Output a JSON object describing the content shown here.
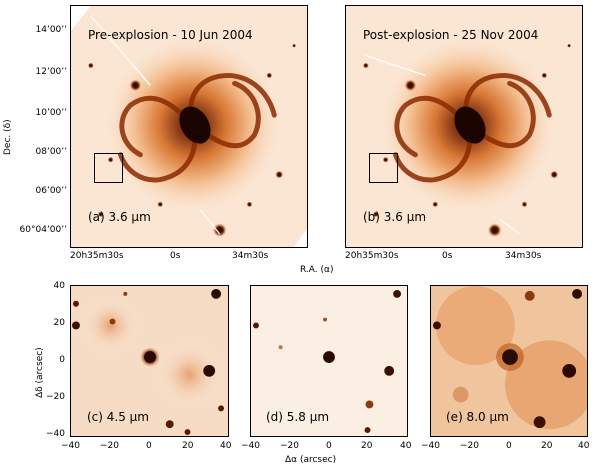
{
  "top_panels": [
    {
      "title": "Pre-explosion - 10 Jun 2004",
      "label": "(a) 3.6 μm"
    },
    {
      "title": "Post-explosion - 25 Nov 2004",
      "label": "(b) 3.6 μm"
    }
  ],
  "top_axes": {
    "y_title": "Dec. (δ)",
    "x_title": "R.A. (α)",
    "y_ticks": [
      "14’00’’",
      "12’00’’",
      "10’00’’",
      "08’00’’",
      "06’00’’",
      "60°04’00’’"
    ],
    "x_ticks": [
      "20h35m30s",
      "0s",
      "34m30s"
    ]
  },
  "bottom_panels": [
    {
      "label": "(c) 4.5 μm"
    },
    {
      "label": "(d) 5.8 μm"
    },
    {
      "label": "(e) 8.0 μm"
    }
  ],
  "bottom_axes": {
    "y_title": "Δδ (arcsec)",
    "x_title": "Δα (arcsec)",
    "y_ticks": [
      "40",
      "20",
      "0",
      "−20",
      "−40"
    ],
    "x_ticks": [
      "−40",
      "−20",
      "0",
      "20",
      "40"
    ]
  },
  "colors": {
    "background_light": "#fdf1e6",
    "mid_orange": "#e8833a",
    "dark": "#2a0a00"
  }
}
